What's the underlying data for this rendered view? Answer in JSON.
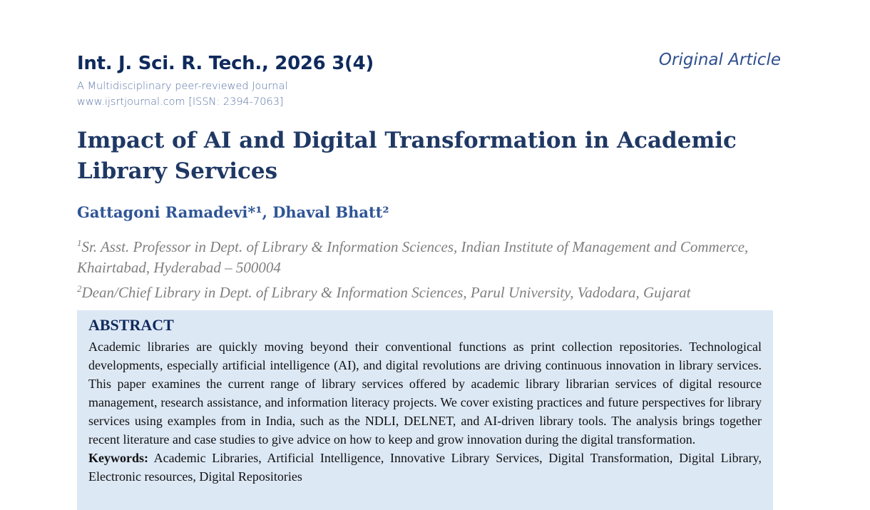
{
  "header": {
    "journal": "Int. J. Sci. R. Tech., 2026 3(4)",
    "subtitle": "A Multidisciplinary peer-reviewed Journal",
    "website": "www.ijsrtjournal.com [ISSN: 2394-7063]",
    "article_type": "Original Article"
  },
  "paper": {
    "title": "Impact of AI and Digital Transformation in Academic Library Services",
    "authors": "Gattagoni Ramadevi*¹, Dhaval Bhatt²",
    "affiliations": [
      {
        "mark": "1",
        "text": "Sr. Asst. Professor in Dept. of Library & Information Sciences, Indian Institute of Management and Commerce, Khairtabad, Hyderabad – 500004"
      },
      {
        "mark": "2",
        "text": "Dean/Chief Library in Dept. of Library & Information Sciences, Parul University, Vadodara, Gujarat"
      }
    ]
  },
  "abstract": {
    "heading": "ABSTRACT",
    "text": "Academic libraries are quickly moving beyond their conventional functions as print collection repositories. Technological developments, especially artificial intelligence (AI), and digital revolutions are driving continuous innovation in library services. This paper examines the current range of library services offered by academic library librarian services of digital resource management, research assistance, and information literacy projects. We cover existing practices and future perspectives for library services using examples from in India, such as the NDLI, DELNET, and AI-driven library tools. The analysis brings together recent literature and case studies to give advice on how to keep and grow innovation during the digital transformation.",
    "keywords_label": "Keywords:",
    "keywords": "Academic Libraries, Artificial Intelligence, Innovative Library Services, Digital Transformation, Digital Library, Electronic resources, Digital Repositories"
  }
}
